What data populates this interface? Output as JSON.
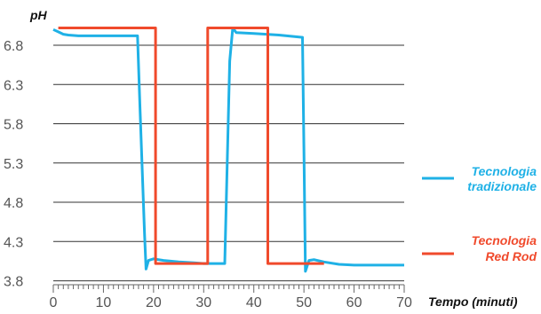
{
  "chart_data": {
    "type": "line",
    "title": "",
    "ylabel": "pH",
    "xlabel": "Tempo (minuti)",
    "xlim": [
      0,
      70
    ],
    "ylim": [
      3.75,
      7.15
    ],
    "x_ticks": [
      0,
      10,
      20,
      30,
      40,
      50,
      60,
      70
    ],
    "y_ticks": [
      3.8,
      4.3,
      4.8,
      5.3,
      5.8,
      6.3,
      6.8
    ],
    "grid": "horizontal",
    "legend_position": "right",
    "series": [
      {
        "name": "Tecnologia tradizionale",
        "color": "#1fb1e6",
        "x": [
          0,
          1,
          2,
          3,
          5,
          8,
          12,
          16.8,
          17.3,
          18.2,
          18.5,
          19,
          20,
          22,
          25,
          28,
          30,
          31,
          33,
          34.2,
          35.2,
          35.8,
          36.5,
          40,
          45,
          49.7,
          50.0,
          50.3,
          51,
          52,
          54,
          57,
          60,
          70
        ],
        "y": [
          7.0,
          6.97,
          6.94,
          6.93,
          6.92,
          6.92,
          6.92,
          6.92,
          6.0,
          4.4,
          3.95,
          4.06,
          4.08,
          4.06,
          4.04,
          4.03,
          4.02,
          4.02,
          4.02,
          4.02,
          6.6,
          7.02,
          6.96,
          6.95,
          6.93,
          6.9,
          5.5,
          3.92,
          4.06,
          4.07,
          4.04,
          4.01,
          4.0,
          4.0
        ]
      },
      {
        "name": "Tecnologia Red Rod",
        "color": "#f04a2c",
        "x": [
          1,
          20.4,
          20.4,
          30.8,
          30.8,
          42.8,
          42.8,
          54
        ],
        "y": [
          7.02,
          7.02,
          4.02,
          4.02,
          7.02,
          7.02,
          4.02,
          4.02
        ]
      }
    ]
  }
}
